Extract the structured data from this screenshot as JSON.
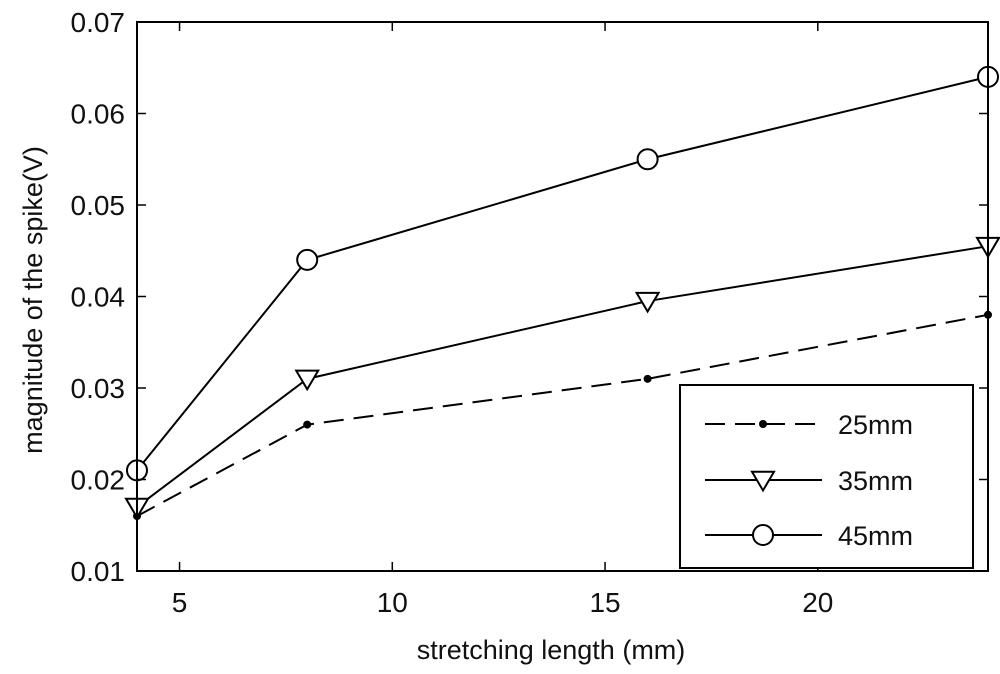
{
  "chart_data": {
    "type": "line",
    "title": "",
    "xlabel": "stretching length (mm)",
    "ylabel": "magnitude of the spike(V)",
    "xlim": [
      4,
      24
    ],
    "ylim": [
      0.01,
      0.07
    ],
    "xticks": [
      5,
      10,
      15,
      20
    ],
    "xtick_labels": [
      "5",
      "10",
      "15",
      "20"
    ],
    "yticks": [
      0.01,
      0.02,
      0.03,
      0.04,
      0.05,
      0.06,
      0.07
    ],
    "ytick_labels": [
      "0.01",
      "0.02",
      "0.03",
      "0.04",
      "0.05",
      "0.06",
      "0.07"
    ],
    "grid": false,
    "legend_position": "bottom-right",
    "series": [
      {
        "name": "25mm",
        "x": [
          4,
          8,
          16,
          24
        ],
        "values": [
          0.016,
          0.026,
          0.031,
          0.038
        ],
        "line": "dashed",
        "marker": "dot",
        "color": "#000000"
      },
      {
        "name": "35mm",
        "x": [
          4,
          8,
          16,
          24
        ],
        "values": [
          0.017,
          0.031,
          0.0395,
          0.0455
        ],
        "line": "solid",
        "marker": "triangle-down",
        "color": "#000000"
      },
      {
        "name": "45mm",
        "x": [
          4,
          8,
          16,
          24
        ],
        "values": [
          0.021,
          0.044,
          0.055,
          0.064
        ],
        "line": "solid",
        "marker": "circle",
        "color": "#000000"
      }
    ]
  }
}
